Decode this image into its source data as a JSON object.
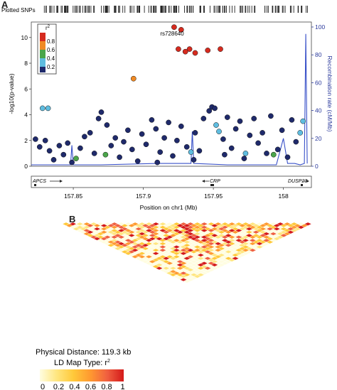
{
  "panel_a": {
    "letter": "A",
    "plotted_snps_label": "Plotted SNPs",
    "lead_snp_label": "rs728640",
    "colors": {
      "r2_0.8_1": "#d62b1f",
      "r2_0.6_0.8": "#f08a24",
      "r2_0.4_0.6": "#4aa64a",
      "r2_0.2_0.4": "#5fbde0",
      "r2_0_0.2": "#1f2a6b",
      "recomb": "#3850c8"
    },
    "genes": [
      {
        "name": "APCS",
        "direction": "right"
      },
      {
        "name": "CRP",
        "direction": "left"
      },
      {
        "name": "DUSP23",
        "direction": "right"
      }
    ]
  },
  "panel_b": {
    "letter": "B",
    "physical_distance_label": "Physical Distance: 119.3 kb",
    "ld_map_type_label": "LD Map Type: r",
    "ld_map_type_sup": "2",
    "color_scale": [
      "#fffde0",
      "#ffe680",
      "#ffc93a",
      "#ff9a30",
      "#f06040",
      "#d41a1a"
    ],
    "scale_labels": [
      "0",
      "0.2",
      "0.4",
      "0.6",
      "0.8",
      "1"
    ]
  },
  "chart_data": {
    "type": "scatter",
    "xlabel": "Position on chr1 (Mb)",
    "ylabel": "-log10(p-value)",
    "ylabel_right": "Recombination rate (cM/Mb)",
    "x_ticks": [
      "157.85",
      "157.9",
      "157.95",
      "158"
    ],
    "y_ticks": [
      "0",
      "2",
      "4",
      "6",
      "8",
      "10"
    ],
    "y2_ticks": [
      "0",
      "20",
      "40",
      "60",
      "80",
      "100"
    ],
    "xlim": [
      157.82,
      158.02
    ],
    "ylim": [
      0,
      11.2
    ],
    "y2lim": [
      0,
      100
    ],
    "legend": {
      "title": "r",
      "title_sup": "2",
      "entries": [
        "0.8",
        "0.6",
        "0.4",
        "0.2"
      ],
      "placement": "top-left"
    },
    "series": [
      {
        "name": "0.8",
        "color": "#d62b1f",
        "points": [
          {
            "x": 157.922,
            "y": 10.8
          },
          {
            "x": 157.927,
            "y": 10.6
          },
          {
            "x": 157.925,
            "y": 9.1
          },
          {
            "x": 157.933,
            "y": 9.1
          },
          {
            "x": 157.937,
            "y": 8.8
          },
          {
            "x": 157.946,
            "y": 9.0
          },
          {
            "x": 157.955,
            "y": 9.1
          },
          {
            "x": 157.93,
            "y": 8.9
          }
        ]
      },
      {
        "name": "0.6",
        "color": "#f08a24",
        "points": [
          {
            "x": 157.893,
            "y": 6.8
          }
        ]
      },
      {
        "name": "0.4",
        "color": "#4aa64a",
        "points": [
          {
            "x": 157.852,
            "y": 0.6
          },
          {
            "x": 157.873,
            "y": 0.9
          },
          {
            "x": 157.993,
            "y": 0.9
          }
        ]
      },
      {
        "name": "0.2",
        "color": "#5fbde0",
        "points": [
          {
            "x": 157.828,
            "y": 4.5
          },
          {
            "x": 157.832,
            "y": 4.5
          },
          {
            "x": 157.952,
            "y": 3.2
          },
          {
            "x": 157.954,
            "y": 2.7
          },
          {
            "x": 157.934,
            "y": 1.1
          },
          {
            "x": 157.973,
            "y": 1.0
          },
          {
            "x": 158.012,
            "y": 2.6
          },
          {
            "x": 158.014,
            "y": 3.5
          }
        ]
      },
      {
        "name": "0",
        "color": "#1f2a6b",
        "points": [
          {
            "x": 157.823,
            "y": 2.1
          },
          {
            "x": 157.826,
            "y": 1.5
          },
          {
            "x": 157.83,
            "y": 2.0
          },
          {
            "x": 157.833,
            "y": 1.2
          },
          {
            "x": 157.836,
            "y": 0.5
          },
          {
            "x": 157.84,
            "y": 1.6
          },
          {
            "x": 157.843,
            "y": 0.9
          },
          {
            "x": 157.846,
            "y": 1.8
          },
          {
            "x": 157.849,
            "y": 0.3
          },
          {
            "x": 157.855,
            "y": 1.4
          },
          {
            "x": 157.858,
            "y": 2.3
          },
          {
            "x": 157.862,
            "y": 2.6
          },
          {
            "x": 157.865,
            "y": 1.0
          },
          {
            "x": 157.868,
            "y": 3.7
          },
          {
            "x": 157.87,
            "y": 4.2
          },
          {
            "x": 157.874,
            "y": 3.2
          },
          {
            "x": 157.877,
            "y": 1.6
          },
          {
            "x": 157.88,
            "y": 2.2
          },
          {
            "x": 157.883,
            "y": 0.7
          },
          {
            "x": 157.886,
            "y": 1.9
          },
          {
            "x": 157.889,
            "y": 2.8
          },
          {
            "x": 157.892,
            "y": 1.3
          },
          {
            "x": 157.896,
            "y": 0.4
          },
          {
            "x": 157.899,
            "y": 2.5
          },
          {
            "x": 157.902,
            "y": 1.7
          },
          {
            "x": 157.906,
            "y": 3.6
          },
          {
            "x": 157.909,
            "y": 2.9
          },
          {
            "x": 157.912,
            "y": 1.1
          },
          {
            "x": 157.915,
            "y": 2.2
          },
          {
            "x": 157.918,
            "y": 3.4
          },
          {
            "x": 157.921,
            "y": 0.8
          },
          {
            "x": 157.924,
            "y": 2.0
          },
          {
            "x": 157.927,
            "y": 3.1
          },
          {
            "x": 157.931,
            "y": 1.5
          },
          {
            "x": 157.937,
            "y": 2.6
          },
          {
            "x": 157.94,
            "y": 1.2
          },
          {
            "x": 157.943,
            "y": 3.7
          },
          {
            "x": 157.947,
            "y": 4.3
          },
          {
            "x": 157.949,
            "y": 4.6
          },
          {
            "x": 157.951,
            "y": 4.5
          },
          {
            "x": 157.957,
            "y": 2.1
          },
          {
            "x": 157.96,
            "y": 3.8
          },
          {
            "x": 157.963,
            "y": 1.4
          },
          {
            "x": 157.966,
            "y": 2.9
          },
          {
            "x": 157.969,
            "y": 3.5
          },
          {
            "x": 157.972,
            "y": 0.6
          },
          {
            "x": 157.976,
            "y": 2.4
          },
          {
            "x": 157.979,
            "y": 3.7
          },
          {
            "x": 157.982,
            "y": 1.8
          },
          {
            "x": 157.985,
            "y": 2.6
          },
          {
            "x": 157.988,
            "y": 1.0
          },
          {
            "x": 157.991,
            "y": 3.9
          },
          {
            "x": 157.996,
            "y": 1.3
          },
          {
            "x": 157.999,
            "y": 2.8
          },
          {
            "x": 158.003,
            "y": 0.7
          },
          {
            "x": 158.006,
            "y": 3.6
          },
          {
            "x": 158.009,
            "y": 1.9
          },
          {
            "x": 157.936,
            "y": 0.5
          },
          {
            "x": 157.958,
            "y": 0.9
          },
          {
            "x": 157.91,
            "y": 0.3
          }
        ]
      }
    ],
    "recombination": {
      "x": [
        157.82,
        157.848,
        157.849,
        157.85,
        157.87,
        157.91,
        157.934,
        157.935,
        157.936,
        157.96,
        157.995,
        158.0,
        158.003,
        158.008,
        158.012,
        158.015,
        158.016,
        158.017
      ],
      "y": [
        1,
        1,
        15,
        1,
        1,
        2,
        2,
        25,
        2,
        1,
        1,
        20,
        2,
        2,
        1,
        2,
        95,
        2
      ]
    }
  }
}
